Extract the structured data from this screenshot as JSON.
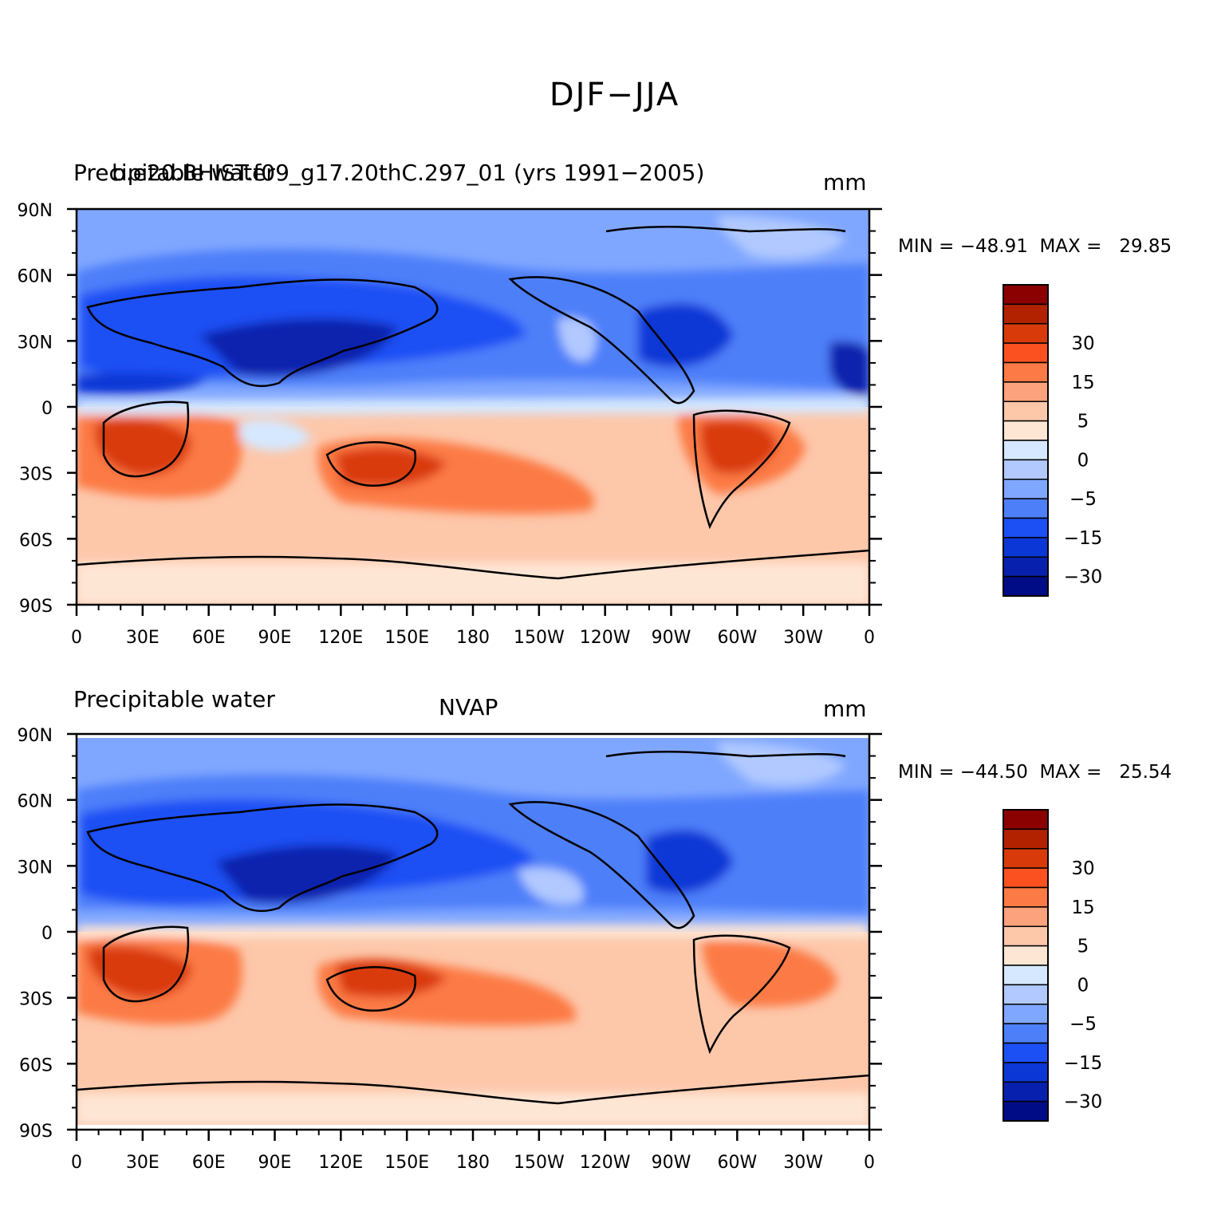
{
  "figure": {
    "title": "DJF−JJA"
  },
  "panels": [
    {
      "left_title": "Precipitable water",
      "center_title": "b.e20.BHIST.f09_g17.20thC.297_01 (yrs 1991−2005)",
      "units": "mm",
      "stats": "MIN = −48.91  MAX =   29.85"
    },
    {
      "left_title": "Precipitable water",
      "center_title": "NVAP",
      "units": "mm",
      "stats": "MIN = −44.50  MAX =   25.54"
    }
  ],
  "axes": {
    "lat_labels": [
      "90N",
      "60N",
      "30N",
      "0",
      "30S",
      "60S",
      "90S"
    ],
    "lon_labels": [
      "0",
      "30E",
      "60E",
      "90E",
      "120E",
      "150E",
      "180",
      "150W",
      "120W",
      "90W",
      "60W",
      "30W",
      "0"
    ]
  },
  "colorbar": {
    "labels": [
      "30",
      "15",
      "5",
      "0",
      "−5",
      "−15",
      "−30"
    ],
    "colors": [
      "#8b0000",
      "#b22200",
      "#d93a0a",
      "#fb5020",
      "#fc7a45",
      "#fca27c",
      "#fdc7aa",
      "#fee6d5",
      "#d5e8ff",
      "#b1c9ff",
      "#80a7ff",
      "#4d7ff9",
      "#1d50f4",
      "#0b37d6",
      "#0720ad",
      "#000c85"
    ]
  },
  "legend_colors": {
    "land_outline": "#000000"
  }
}
